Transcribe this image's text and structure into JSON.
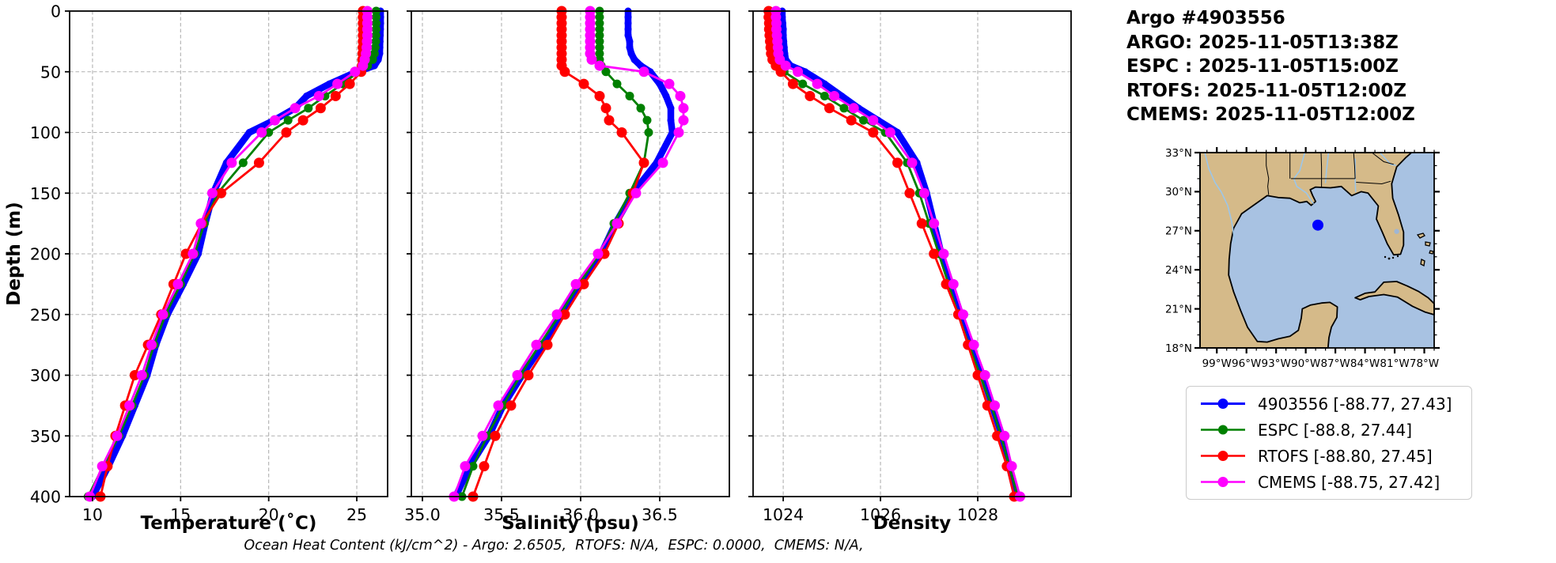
{
  "header": {
    "lines": [
      "Argo #4903556",
      "ARGO: 2025-11-05T13:38Z",
      "ESPC : 2025-11-05T15:00Z",
      "RTOFS: 2025-11-05T12:00Z",
      "CMEMS: 2025-11-05T12:00Z"
    ]
  },
  "footer": {
    "ocean_heat_content": "Ocean Heat Content (kJ/cm^2) - Argo: 2.6505,  RTOFS: N/A,  ESPC: 0.0000,  CMEMS: N/A,"
  },
  "legend": {
    "position": "lower right",
    "items": [
      {
        "label": "4903556 [-88.77, 27.43]",
        "color": "#0000ff"
      },
      {
        "label": "ESPC [-88.8, 27.44]",
        "color": "#008000"
      },
      {
        "label": "RTOFS [-88.80, 27.45]",
        "color": "#ff0000"
      },
      {
        "label": "CMEMS [-88.75, 27.42]",
        "color": "#ff00ff"
      }
    ]
  },
  "chart_data": {
    "type": "line",
    "description": "Argo float vertical profiles (Temperature, Salinity, Density vs Depth) compared with ESPC, RTOFS and CMEMS model profiles; grid on; depth axis inverted",
    "depth_axis": {
      "label": "Depth (m)",
      "ticks": [
        0,
        50,
        100,
        150,
        200,
        250,
        300,
        350,
        400
      ],
      "range": [
        0,
        400
      ],
      "inverted": true
    },
    "depths_m": [
      0,
      5,
      10,
      15,
      20,
      25,
      30,
      35,
      40,
      45,
      50,
      60,
      70,
      80,
      90,
      100,
      125,
      150,
      175,
      200,
      225,
      250,
      275,
      300,
      325,
      350,
      375,
      400
    ],
    "series_meta": [
      {
        "key": "argo",
        "label": "4903556 [-88.77, 27.43]",
        "color": "#0000ff",
        "linewidth": 8.5,
        "marker_radius": 4.5
      },
      {
        "key": "espc",
        "label": "ESPC [-88.8, 27.44]",
        "color": "#008000",
        "linewidth": 2.8,
        "marker_radius": 5.5
      },
      {
        "key": "rtofs",
        "label": "RTOFS [-88.80, 27.45]",
        "color": "#ff0000",
        "linewidth": 2.8,
        "marker_radius": 6.5
      },
      {
        "key": "cmems",
        "label": "CMEMS [-88.75, 27.42]",
        "color": "#ff00ff",
        "linewidth": 2.8,
        "marker_radius": 6.5
      }
    ],
    "panels": [
      {
        "key": "temperature",
        "xlabel": "Temperature (˚C)",
        "xtick_labels": [
          "10",
          "15",
          "20",
          "25"
        ],
        "xtick_values": [
          10,
          15,
          20,
          25
        ],
        "xlim": [
          8.7,
          26.75
        ],
        "values": {
          "argo": [
            26.35,
            26.35,
            26.35,
            26.34,
            26.33,
            26.32,
            26.31,
            26.3,
            26.22,
            26.0,
            25.0,
            23.45,
            22.15,
            21.5,
            20.3,
            18.9,
            17.6,
            16.85,
            16.4,
            16.0,
            15.15,
            14.25,
            13.6,
            13.1,
            12.4,
            11.7,
            10.9,
            10.0
          ],
          "espc": [
            26.1,
            26.1,
            26.1,
            26.1,
            26.09,
            26.08,
            26.05,
            26.0,
            25.9,
            25.62,
            25.1,
            24.2,
            23.2,
            22.25,
            21.1,
            20.0,
            18.55,
            17.1,
            16.35,
            15.8,
            15.0,
            14.15,
            13.5,
            12.95,
            12.25,
            11.5,
            10.6,
            9.75
          ],
          "rtofs": [
            25.35,
            25.35,
            25.35,
            25.35,
            25.35,
            25.35,
            25.34,
            25.33,
            25.32,
            25.3,
            25.25,
            24.6,
            23.8,
            22.95,
            21.95,
            21.0,
            19.45,
            17.3,
            16.2,
            15.3,
            14.6,
            13.9,
            13.15,
            12.4,
            11.85,
            11.3,
            10.85,
            10.45
          ],
          "cmems": [
            25.6,
            25.6,
            25.6,
            25.6,
            25.6,
            25.58,
            25.56,
            25.52,
            25.45,
            25.35,
            24.9,
            23.9,
            22.85,
            21.5,
            20.35,
            19.6,
            17.9,
            16.8,
            16.15,
            15.7,
            14.85,
            14.0,
            13.35,
            12.8,
            12.1,
            11.4,
            10.55,
            9.85
          ]
        }
      },
      {
        "key": "salinity",
        "xlabel": "Salinity (psu)",
        "xtick_labels": [
          "35.0",
          "35.5",
          "36.0",
          "36.5"
        ],
        "xtick_values": [
          35.0,
          35.5,
          36.0,
          36.5
        ],
        "xlim": [
          34.93,
          36.94
        ],
        "values": {
          "argo": [
            36.3,
            36.3,
            36.3,
            36.3,
            36.3,
            36.31,
            36.31,
            36.32,
            36.34,
            36.38,
            36.44,
            36.5,
            36.54,
            36.57,
            36.57,
            36.58,
            36.48,
            36.33,
            36.22,
            36.13,
            36.0,
            35.88,
            35.76,
            35.63,
            35.51,
            35.42,
            35.3,
            35.21
          ],
          "espc": [
            36.12,
            36.12,
            36.12,
            36.12,
            36.12,
            36.12,
            36.12,
            36.12,
            36.12,
            36.13,
            36.16,
            36.23,
            36.31,
            36.38,
            36.42,
            36.43,
            36.4,
            36.31,
            36.21,
            36.12,
            35.99,
            35.87,
            35.74,
            35.62,
            35.51,
            35.41,
            35.32,
            35.25
          ],
          "rtofs": [
            35.88,
            35.88,
            35.88,
            35.88,
            35.88,
            35.88,
            35.88,
            35.88,
            35.88,
            35.88,
            35.9,
            36.02,
            36.12,
            36.16,
            36.18,
            36.26,
            36.4,
            36.33,
            36.24,
            36.15,
            36.02,
            35.9,
            35.79,
            35.67,
            35.56,
            35.46,
            35.39,
            35.32
          ],
          "cmems": [
            36.06,
            36.06,
            36.06,
            36.06,
            36.06,
            36.06,
            36.06,
            36.06,
            36.07,
            36.12,
            36.4,
            36.56,
            36.63,
            36.65,
            36.65,
            36.62,
            36.52,
            36.35,
            36.23,
            36.11,
            35.97,
            35.85,
            35.72,
            35.6,
            35.48,
            35.38,
            35.27,
            35.2
          ]
        }
      },
      {
        "key": "density",
        "xlabel": "Density",
        "xtick_labels": [
          "1024",
          "1026",
          "1028"
        ],
        "xtick_values": [
          1024,
          1026,
          1028
        ],
        "xlim": [
          1023.38,
          1029.92
        ],
        "values": {
          "argo": [
            1023.98,
            1023.98,
            1023.99,
            1024.0,
            1024.0,
            1024.01,
            1024.02,
            1024.03,
            1024.05,
            1024.15,
            1024.45,
            1024.85,
            1025.2,
            1025.55,
            1025.95,
            1026.35,
            1026.75,
            1026.95,
            1027.1,
            1027.25,
            1027.45,
            1027.65,
            1027.85,
            1028.1,
            1028.3,
            1028.5,
            1028.65,
            1028.8
          ],
          "espc": [
            1023.72,
            1023.72,
            1023.73,
            1023.73,
            1023.74,
            1023.75,
            1023.76,
            1023.77,
            1023.8,
            1023.87,
            1024.02,
            1024.4,
            1024.85,
            1025.25,
            1025.65,
            1026.1,
            1026.55,
            1026.8,
            1027.0,
            1027.2,
            1027.4,
            1027.6,
            1027.82,
            1028.05,
            1028.28,
            1028.48,
            1028.65,
            1028.82
          ],
          "rtofs": [
            1023.7,
            1023.7,
            1023.71,
            1023.71,
            1023.72,
            1023.73,
            1023.74,
            1023.75,
            1023.78,
            1023.85,
            1023.95,
            1024.2,
            1024.55,
            1024.95,
            1025.4,
            1025.85,
            1026.35,
            1026.6,
            1026.85,
            1027.1,
            1027.35,
            1027.6,
            1027.8,
            1028.0,
            1028.2,
            1028.4,
            1028.6,
            1028.75
          ],
          "cmems": [
            1023.85,
            1023.85,
            1023.86,
            1023.86,
            1023.87,
            1023.88,
            1023.89,
            1023.9,
            1023.93,
            1024.05,
            1024.3,
            1024.7,
            1025.05,
            1025.45,
            1025.85,
            1026.2,
            1026.65,
            1026.9,
            1027.1,
            1027.3,
            1027.5,
            1027.7,
            1027.92,
            1028.15,
            1028.35,
            1028.55,
            1028.7,
            1028.87
          ]
        }
      }
    ],
    "map": {
      "region": "Gulf of Mexico",
      "extent": {
        "lon_min": -100.7,
        "lon_max": -77.0,
        "lat_min": 18,
        "lat_max": 33
      },
      "lat_tick_labels": [
        "33°N",
        "30°N",
        "27°N",
        "24°N",
        "21°N",
        "18°N"
      ],
      "lat_tick_values": [
        33,
        30,
        27,
        24,
        21,
        18
      ],
      "lon_tick_labels": [
        "99°W",
        "96°W",
        "93°W",
        "90°W",
        "87°W",
        "84°W",
        "81°W",
        "78°W"
      ],
      "lon_tick_values": [
        -99,
        -96,
        -93,
        -90,
        -87,
        -84,
        -81,
        -78
      ],
      "float_marker": {
        "lon": -88.77,
        "lat": 27.43,
        "color": "#0000ff"
      },
      "colors": {
        "land": "#d5ba89",
        "ocean": "#a8c2e2",
        "river": "#9dc6e8",
        "lake": "#9fb6d4",
        "coastline": "#000000"
      }
    }
  }
}
